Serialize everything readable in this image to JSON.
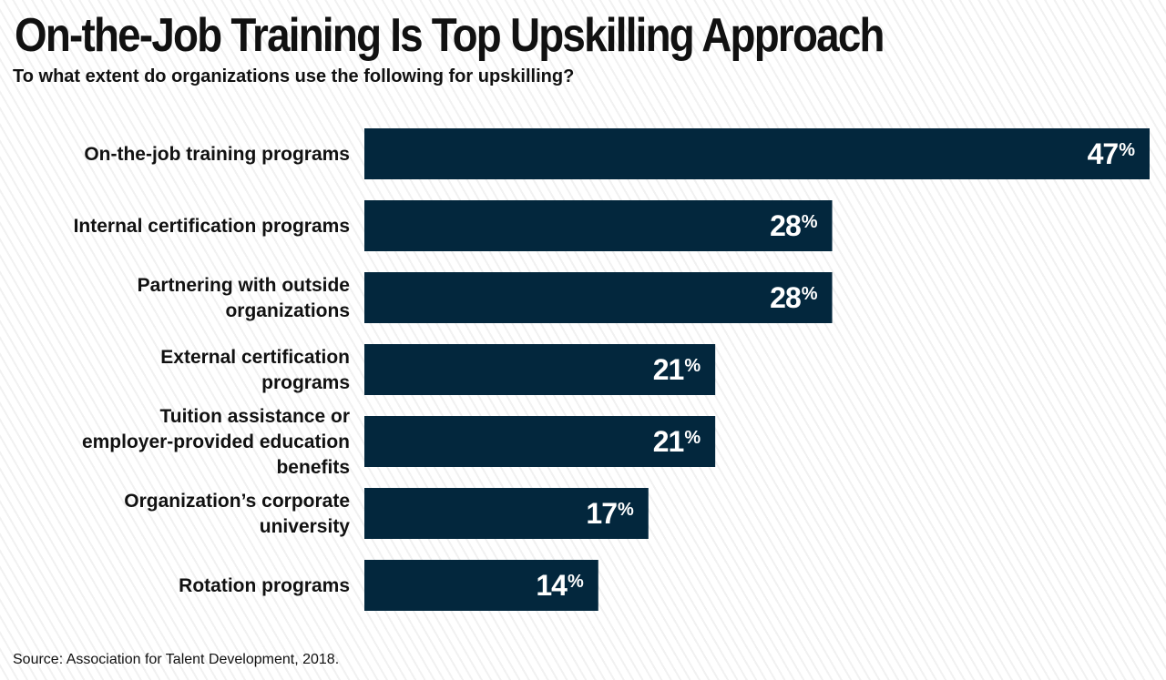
{
  "header": {
    "title": "On-the-Job Training Is Top Upskilling Approach",
    "subtitle": "To what extent do organizations use the following for upskilling?"
  },
  "footer": {
    "source": "Source: Association for Talent Development, 2018."
  },
  "colors": {
    "bar": "#03273d",
    "bar_label": "#ffffff",
    "category_label": "#111111"
  },
  "chart_data": {
    "type": "bar",
    "orientation": "horizontal",
    "title": "On-the-Job Training Is Top Upskilling Approach",
    "subtitle": "To what extent do organizations use the following for upskilling?",
    "categories": [
      [
        "On-the-job training programs"
      ],
      [
        "Internal certification programs"
      ],
      [
        "Partnering with outside",
        "organizations"
      ],
      [
        "External certification",
        "programs"
      ],
      [
        "Tuition assistance or",
        "employer-provided education",
        "benefits"
      ],
      [
        "Organization’s corporate",
        "university"
      ],
      [
        "Rotation programs"
      ]
    ],
    "values": [
      47,
      28,
      28,
      21,
      21,
      17,
      14
    ],
    "value_suffix": "%",
    "xlim": [
      0,
      47
    ],
    "grid": false,
    "legend": "none",
    "xlabel": "",
    "ylabel": ""
  }
}
